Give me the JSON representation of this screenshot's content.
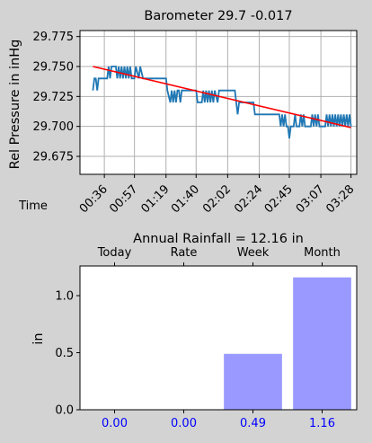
{
  "colors": {
    "background": "#d3d3d3",
    "plot_bg": "#ffffff",
    "pressure_line": "#1f77b4",
    "trend_line": "#ff0000",
    "bar_fill": "#9999ff",
    "bar_label": "#0000ff",
    "grid": "#b0b0b0"
  },
  "chart_data": [
    {
      "type": "line",
      "title": "Barometer 29.7 -0.017",
      "xlabel": "Time",
      "ylabel": "Rel Pressure in inHg",
      "grid": true,
      "xlim": [
        "00:19",
        "03:32"
      ],
      "ylim": [
        29.66,
        29.78
      ],
      "x_ticks": [
        "00:36",
        "00:57",
        "01:19",
        "01:40",
        "02:02",
        "02:24",
        "02:45",
        "03:07",
        "03:28"
      ],
      "y_ticks": [
        "29.675",
        "29.700",
        "29.725",
        "29.750",
        "29.775"
      ],
      "series": [
        {
          "role": "pressure",
          "color": "#1f77b4",
          "points": [
            [
              "00:28",
              29.73
            ],
            [
              "00:29",
              29.74
            ],
            [
              "00:30",
              29.74
            ],
            [
              "00:31",
              29.73
            ],
            [
              "00:32",
              29.74
            ],
            [
              "00:38",
              29.74
            ],
            [
              "00:39",
              29.75
            ],
            [
              "00:40",
              29.74
            ],
            [
              "00:41",
              29.75
            ],
            [
              "00:44",
              29.75
            ],
            [
              "00:45",
              29.74
            ],
            [
              "00:46",
              29.75
            ],
            [
              "00:47",
              29.74
            ],
            [
              "00:48",
              29.75
            ],
            [
              "00:49",
              29.74
            ],
            [
              "00:50",
              29.75
            ],
            [
              "00:51",
              29.74
            ],
            [
              "00:52",
              29.75
            ],
            [
              "00:53",
              29.74
            ],
            [
              "00:54",
              29.75
            ],
            [
              "00:55",
              29.74
            ],
            [
              "00:57",
              29.74
            ],
            [
              "00:58",
              29.75
            ],
            [
              "01:00",
              29.74
            ],
            [
              "01:01",
              29.75
            ],
            [
              "01:03",
              29.74
            ],
            [
              "01:19",
              29.74
            ],
            [
              "01:20",
              29.73
            ],
            [
              "01:22",
              29.72
            ],
            [
              "01:23",
              29.73
            ],
            [
              "01:24",
              29.72
            ],
            [
              "01:25",
              29.73
            ],
            [
              "01:26",
              29.72
            ],
            [
              "01:27",
              29.73
            ],
            [
              "01:28",
              29.73
            ],
            [
              "01:29",
              29.72
            ],
            [
              "01:30",
              29.73
            ],
            [
              "01:40",
              29.73
            ],
            [
              "01:41",
              29.72
            ],
            [
              "01:44",
              29.72
            ],
            [
              "01:45",
              29.73
            ],
            [
              "01:46",
              29.72
            ],
            [
              "01:47",
              29.73
            ],
            [
              "01:48",
              29.72
            ],
            [
              "01:49",
              29.73
            ],
            [
              "01:50",
              29.72
            ],
            [
              "01:51",
              29.73
            ],
            [
              "01:52",
              29.72
            ],
            [
              "01:53",
              29.73
            ],
            [
              "01:55",
              29.72
            ],
            [
              "01:56",
              29.73
            ],
            [
              "02:07",
              29.73
            ],
            [
              "02:08",
              29.72
            ],
            [
              "02:09",
              29.71
            ],
            [
              "02:10",
              29.72
            ],
            [
              "02:20",
              29.72
            ],
            [
              "02:21",
              29.71
            ],
            [
              "02:38",
              29.71
            ],
            [
              "02:39",
              29.7
            ],
            [
              "02:40",
              29.71
            ],
            [
              "02:41",
              29.7
            ],
            [
              "02:42",
              29.71
            ],
            [
              "02:43",
              29.7
            ],
            [
              "02:44",
              29.7
            ],
            [
              "02:45",
              29.69
            ],
            [
              "02:46",
              29.7
            ],
            [
              "02:48",
              29.7
            ],
            [
              "02:49",
              29.71
            ],
            [
              "02:50",
              29.7
            ],
            [
              "02:52",
              29.7
            ],
            [
              "02:53",
              29.71
            ],
            [
              "02:54",
              29.7
            ],
            [
              "02:55",
              29.71
            ],
            [
              "02:56",
              29.7
            ],
            [
              "03:00",
              29.7
            ],
            [
              "03:01",
              29.71
            ],
            [
              "03:02",
              29.7
            ],
            [
              "03:03",
              29.71
            ],
            [
              "03:04",
              29.7
            ],
            [
              "03:05",
              29.71
            ],
            [
              "03:06",
              29.7
            ],
            [
              "03:10",
              29.7
            ],
            [
              "03:11",
              29.71
            ],
            [
              "03:12",
              29.7
            ],
            [
              "03:13",
              29.71
            ],
            [
              "03:14",
              29.7
            ],
            [
              "03:15",
              29.71
            ],
            [
              "03:16",
              29.7
            ],
            [
              "03:17",
              29.71
            ],
            [
              "03:18",
              29.7
            ],
            [
              "03:19",
              29.71
            ],
            [
              "03:20",
              29.7
            ],
            [
              "03:21",
              29.71
            ],
            [
              "03:22",
              29.7
            ],
            [
              "03:23",
              29.71
            ],
            [
              "03:24",
              29.7
            ],
            [
              "03:25",
              29.71
            ],
            [
              "03:26",
              29.7
            ],
            [
              "03:27",
              29.71
            ],
            [
              "03:28",
              29.7
            ]
          ]
        },
        {
          "role": "trend",
          "color": "#ff0000",
          "points": [
            [
              "00:28",
              29.75
            ],
            [
              "03:28",
              29.699
            ]
          ]
        }
      ]
    },
    {
      "type": "bar",
      "title": "Annual Rainfall = 12.16 in",
      "ylabel": "in",
      "categories": [
        "Today",
        "Rate",
        "Week",
        "Month"
      ],
      "values": [
        0.0,
        0.0,
        0.49,
        1.16
      ],
      "value_labels": [
        "0.00",
        "0.00",
        "0.49",
        "1.16"
      ],
      "ylim": [
        0,
        1.26
      ],
      "y_ticks": [
        "0.0",
        "0.5",
        "1.0"
      ],
      "category_labels_position": "top",
      "value_labels_position": "bottom"
    }
  ]
}
